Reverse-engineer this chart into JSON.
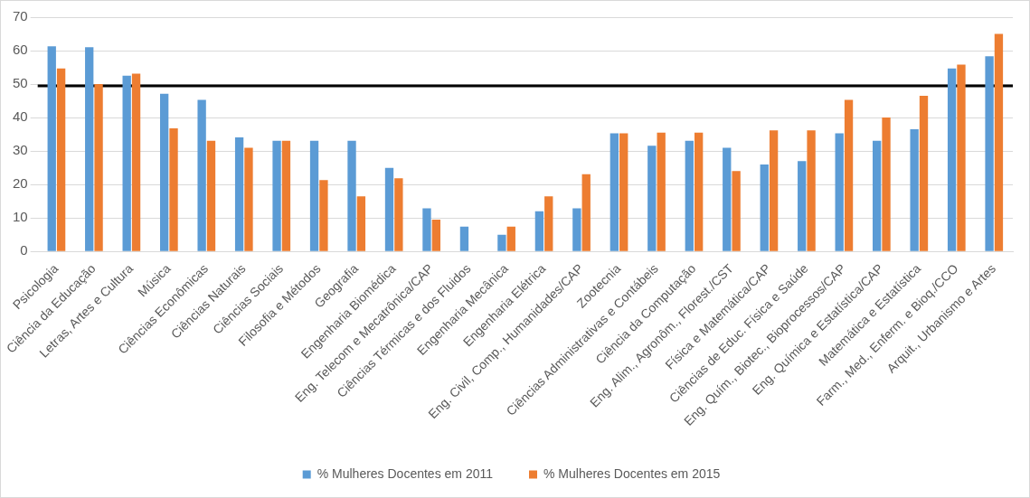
{
  "chart_data": {
    "type": "bar",
    "categories": [
      "Psicologia",
      "Ciência da Educação",
      "Letras, Artes e Cultura",
      "Música",
      "Ciências Econômicas",
      "Ciências Naturais",
      "Ciências Sociais",
      "Filosofia e Métodos",
      "Geografia",
      "Engenharia Biomédica",
      "Eng. Telecom e Mecatrônica/CAP",
      "Ciências Térmicas e dos Fluidos",
      "Engenharia Mecânica",
      "Engenharia Elétrica",
      "Eng. Civil, Comp., Humanidades/CAP",
      "Zootecnia",
      "Ciências Administrativas e Contábeis",
      "Ciência da Computação",
      "Eng. Alim., Agronôm., Florest./CST",
      "Física e Matemática/CAP",
      "Ciências de Educ. Física e Saúde",
      "Eng. Quím., Biotec., Bioprocessos/CAP",
      "Eng. Química e Estatística/CAP",
      "Matemática e Estatística",
      "Farm., Med., Enferm. e Bioq./CCO",
      "Arquit., Urbanismo e Artes"
    ],
    "series": [
      {
        "name": "% Mulheres Docentes em 2011",
        "color": "#5b9bd5",
        "values": [
          61.3,
          61,
          52.5,
          47.1,
          45.3,
          34.1,
          33.1,
          33.1,
          33.1,
          25,
          12.9,
          7.4,
          5,
          12,
          12.9,
          35.3,
          31.6,
          33.1,
          31,
          26,
          27,
          35.3,
          33.1,
          36.5,
          54.7,
          58.3
        ]
      },
      {
        "name": "% Mulheres Docentes em 2015",
        "color": "#ed7d31",
        "values": [
          54.7,
          50,
          53.1,
          36.8,
          33.1,
          31,
          33.1,
          21.3,
          16.5,
          21.9,
          9.5,
          null,
          7.4,
          16.5,
          23.1,
          35.3,
          35.5,
          35.5,
          24,
          36.2,
          36.2,
          45.3,
          40,
          46.5,
          55.8,
          65
        ]
      }
    ],
    "ylim": [
      0,
      70
    ],
    "yticks": [
      0,
      10,
      20,
      30,
      40,
      50,
      60,
      70
    ],
    "grid": "y",
    "legend": "bottom",
    "ref_lines": [
      {
        "axis": "y",
        "value": 49.5,
        "color": "#000000"
      }
    ]
  }
}
